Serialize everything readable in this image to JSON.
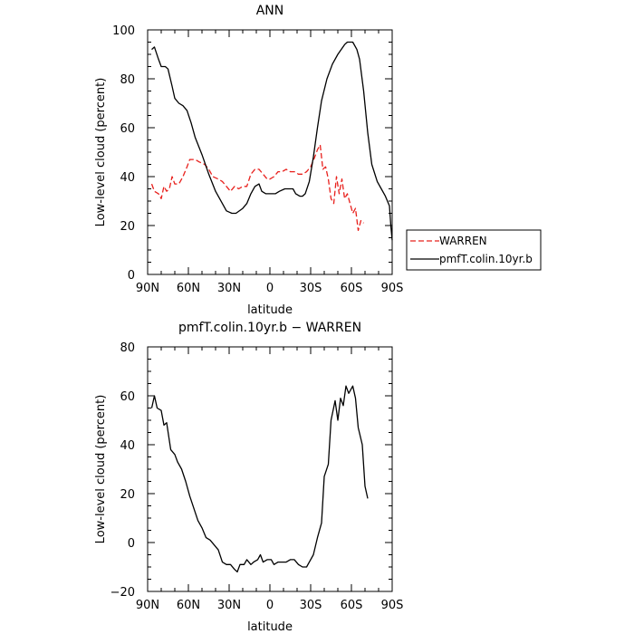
{
  "chart_data": [
    {
      "type": "line",
      "title": "ANN",
      "xlabel": "latitude",
      "ylabel": "Low-level cloud (percent)",
      "xlim": [
        90,
        -90
      ],
      "ylim": [
        0,
        100
      ],
      "x_ticks": [
        90,
        60,
        30,
        0,
        -30,
        -60,
        -90
      ],
      "x_tick_labels": [
        "90N",
        "60N",
        "30N",
        "0",
        "30S",
        "60S",
        "90S"
      ],
      "y_ticks": [
        0,
        20,
        40,
        60,
        80,
        100
      ],
      "y_tick_labels": [
        "0",
        "20",
        "40",
        "60",
        "80",
        "100"
      ],
      "legend_position": "right",
      "series": [
        {
          "name": "WARREN",
          "color": "#e8201c",
          "dash": "dashed",
          "points": [
            [
              87,
              37
            ],
            [
              85,
              34
            ],
            [
              82,
              33
            ],
            [
              80,
              31
            ],
            [
              78,
              36
            ],
            [
              76,
              34
            ],
            [
              74,
              35
            ],
            [
              72,
              40
            ],
            [
              70,
              37
            ],
            [
              67,
              37
            ],
            [
              64,
              40
            ],
            [
              61,
              44
            ],
            [
              59,
              47
            ],
            [
              55,
              47
            ],
            [
              52,
              46
            ],
            [
              48,
              45
            ],
            [
              45,
              43
            ],
            [
              42,
              40
            ],
            [
              38,
              39
            ],
            [
              35,
              38
            ],
            [
              32,
              36
            ],
            [
              29,
              34
            ],
            [
              26,
              36
            ],
            [
              23,
              35
            ],
            [
              20,
              36
            ],
            [
              17,
              36
            ],
            [
              14,
              41
            ],
            [
              11,
              43
            ],
            [
              8,
              43
            ],
            [
              5,
              41
            ],
            [
              2,
              39
            ],
            [
              0,
              39
            ],
            [
              -3,
              40
            ],
            [
              -6,
              42
            ],
            [
              -9,
              42
            ],
            [
              -12,
              43
            ],
            [
              -15,
              42
            ],
            [
              -18,
              42
            ],
            [
              -21,
              41
            ],
            [
              -24,
              41
            ],
            [
              -27,
              42
            ],
            [
              -30,
              44
            ],
            [
              -33,
              48
            ],
            [
              -35,
              51
            ],
            [
              -37,
              53
            ],
            [
              -39,
              43
            ],
            [
              -41,
              44
            ],
            [
              -43,
              39
            ],
            [
              -45,
              31
            ],
            [
              -47,
              29
            ],
            [
              -49,
              40
            ],
            [
              -51,
              33
            ],
            [
              -53,
              39
            ],
            [
              -55,
              31
            ],
            [
              -57,
              33
            ],
            [
              -59,
              29
            ],
            [
              -61,
              25
            ],
            [
              -63,
              27
            ],
            [
              -65,
              18
            ],
            [
              -67,
              22
            ],
            [
              -69,
              21
            ]
          ]
        },
        {
          "name": "pmfT.colin.10yr.b",
          "color": "#000000",
          "dash": "solid",
          "points": [
            [
              87,
              92
            ],
            [
              85,
              93
            ],
            [
              82,
              88
            ],
            [
              80,
              85
            ],
            [
              77,
              85
            ],
            [
              75,
              84
            ],
            [
              72,
              77
            ],
            [
              70,
              72
            ],
            [
              67,
              70
            ],
            [
              64,
              69
            ],
            [
              61,
              67
            ],
            [
              58,
              62
            ],
            [
              55,
              56
            ],
            [
              50,
              49
            ],
            [
              45,
              41
            ],
            [
              40,
              34
            ],
            [
              35,
              29
            ],
            [
              32,
              26
            ],
            [
              28,
              25
            ],
            [
              25,
              25
            ],
            [
              20,
              27
            ],
            [
              17,
              29
            ],
            [
              14,
              33
            ],
            [
              11,
              36
            ],
            [
              8,
              37
            ],
            [
              6,
              34
            ],
            [
              3,
              33
            ],
            [
              -1,
              33
            ],
            [
              -4,
              33
            ],
            [
              -7,
              34
            ],
            [
              -11,
              35
            ],
            [
              -14,
              35
            ],
            [
              -17,
              35
            ],
            [
              -19,
              33
            ],
            [
              -22,
              32
            ],
            [
              -24,
              32
            ],
            [
              -26,
              33
            ],
            [
              -29,
              38
            ],
            [
              -32,
              48
            ],
            [
              -35,
              60
            ],
            [
              -38,
              71
            ],
            [
              -42,
              80
            ],
            [
              -46,
              86
            ],
            [
              -50,
              90
            ],
            [
              -55,
              94
            ],
            [
              -57,
              95
            ],
            [
              -61,
              95
            ],
            [
              -64,
              92
            ],
            [
              -66,
              88
            ],
            [
              -69,
              75
            ],
            [
              -72,
              58
            ],
            [
              -75,
              45
            ],
            [
              -79,
              38
            ],
            [
              -82,
              35
            ],
            [
              -85,
              32
            ],
            [
              -88,
              28
            ],
            [
              -89,
              20
            ],
            [
              -90,
              14
            ]
          ]
        }
      ]
    },
    {
      "type": "line",
      "title": "pmfT.colin.10yr.b − WARREN",
      "xlabel": "latitude",
      "ylabel": "Low-level cloud (percent)",
      "xlim": [
        90,
        -90
      ],
      "ylim": [
        -20,
        80
      ],
      "x_ticks": [
        90,
        60,
        30,
        0,
        -30,
        -60,
        -90
      ],
      "x_tick_labels": [
        "90N",
        "60N",
        "30N",
        "0",
        "30S",
        "60S",
        "90S"
      ],
      "y_ticks": [
        -20,
        0,
        20,
        40,
        60,
        80
      ],
      "y_tick_labels": [
        "−20",
        "0",
        "20",
        "40",
        "60",
        "80"
      ],
      "series": [
        {
          "color": "#000000",
          "dash": "solid",
          "points": [
            [
              87,
              55
            ],
            [
              85,
              60
            ],
            [
              83,
              55
            ],
            [
              80,
              54
            ],
            [
              78,
              48
            ],
            [
              76,
              49
            ],
            [
              73,
              38
            ],
            [
              70,
              36
            ],
            [
              68,
              33
            ],
            [
              65,
              30
            ],
            [
              62,
              25
            ],
            [
              59,
              19
            ],
            [
              56,
              14
            ],
            [
              53,
              9
            ],
            [
              50,
              6
            ],
            [
              47,
              2
            ],
            [
              44,
              1
            ],
            [
              41,
              -1
            ],
            [
              38,
              -3
            ],
            [
              35,
              -8
            ],
            [
              32,
              -9
            ],
            [
              29,
              -9
            ],
            [
              26,
              -11
            ],
            [
              24,
              -12
            ],
            [
              22,
              -9
            ],
            [
              19,
              -9
            ],
            [
              17,
              -7
            ],
            [
              14,
              -9
            ],
            [
              12,
              -8
            ],
            [
              9,
              -7
            ],
            [
              7,
              -5
            ],
            [
              5,
              -8
            ],
            [
              2,
              -7
            ],
            [
              -1,
              -7
            ],
            [
              -3,
              -9
            ],
            [
              -6,
              -8
            ],
            [
              -9,
              -8
            ],
            [
              -12,
              -8
            ],
            [
              -15,
              -7
            ],
            [
              -18,
              -7
            ],
            [
              -21,
              -9
            ],
            [
              -24,
              -10
            ],
            [
              -27,
              -10
            ],
            [
              -29,
              -8
            ],
            [
              -32,
              -5
            ],
            [
              -35,
              2
            ],
            [
              -38,
              8
            ],
            [
              -40,
              27
            ],
            [
              -43,
              32
            ],
            [
              -45,
              50
            ],
            [
              -48,
              58
            ],
            [
              -50,
              50
            ],
            [
              -52,
              59
            ],
            [
              -54,
              56
            ],
            [
              -56,
              64
            ],
            [
              -58,
              61
            ],
            [
              -61,
              64
            ],
            [
              -63,
              59
            ],
            [
              -65,
              47
            ],
            [
              -68,
              40
            ],
            [
              -70,
              23
            ],
            [
              -72,
              18
            ]
          ]
        }
      ]
    }
  ]
}
